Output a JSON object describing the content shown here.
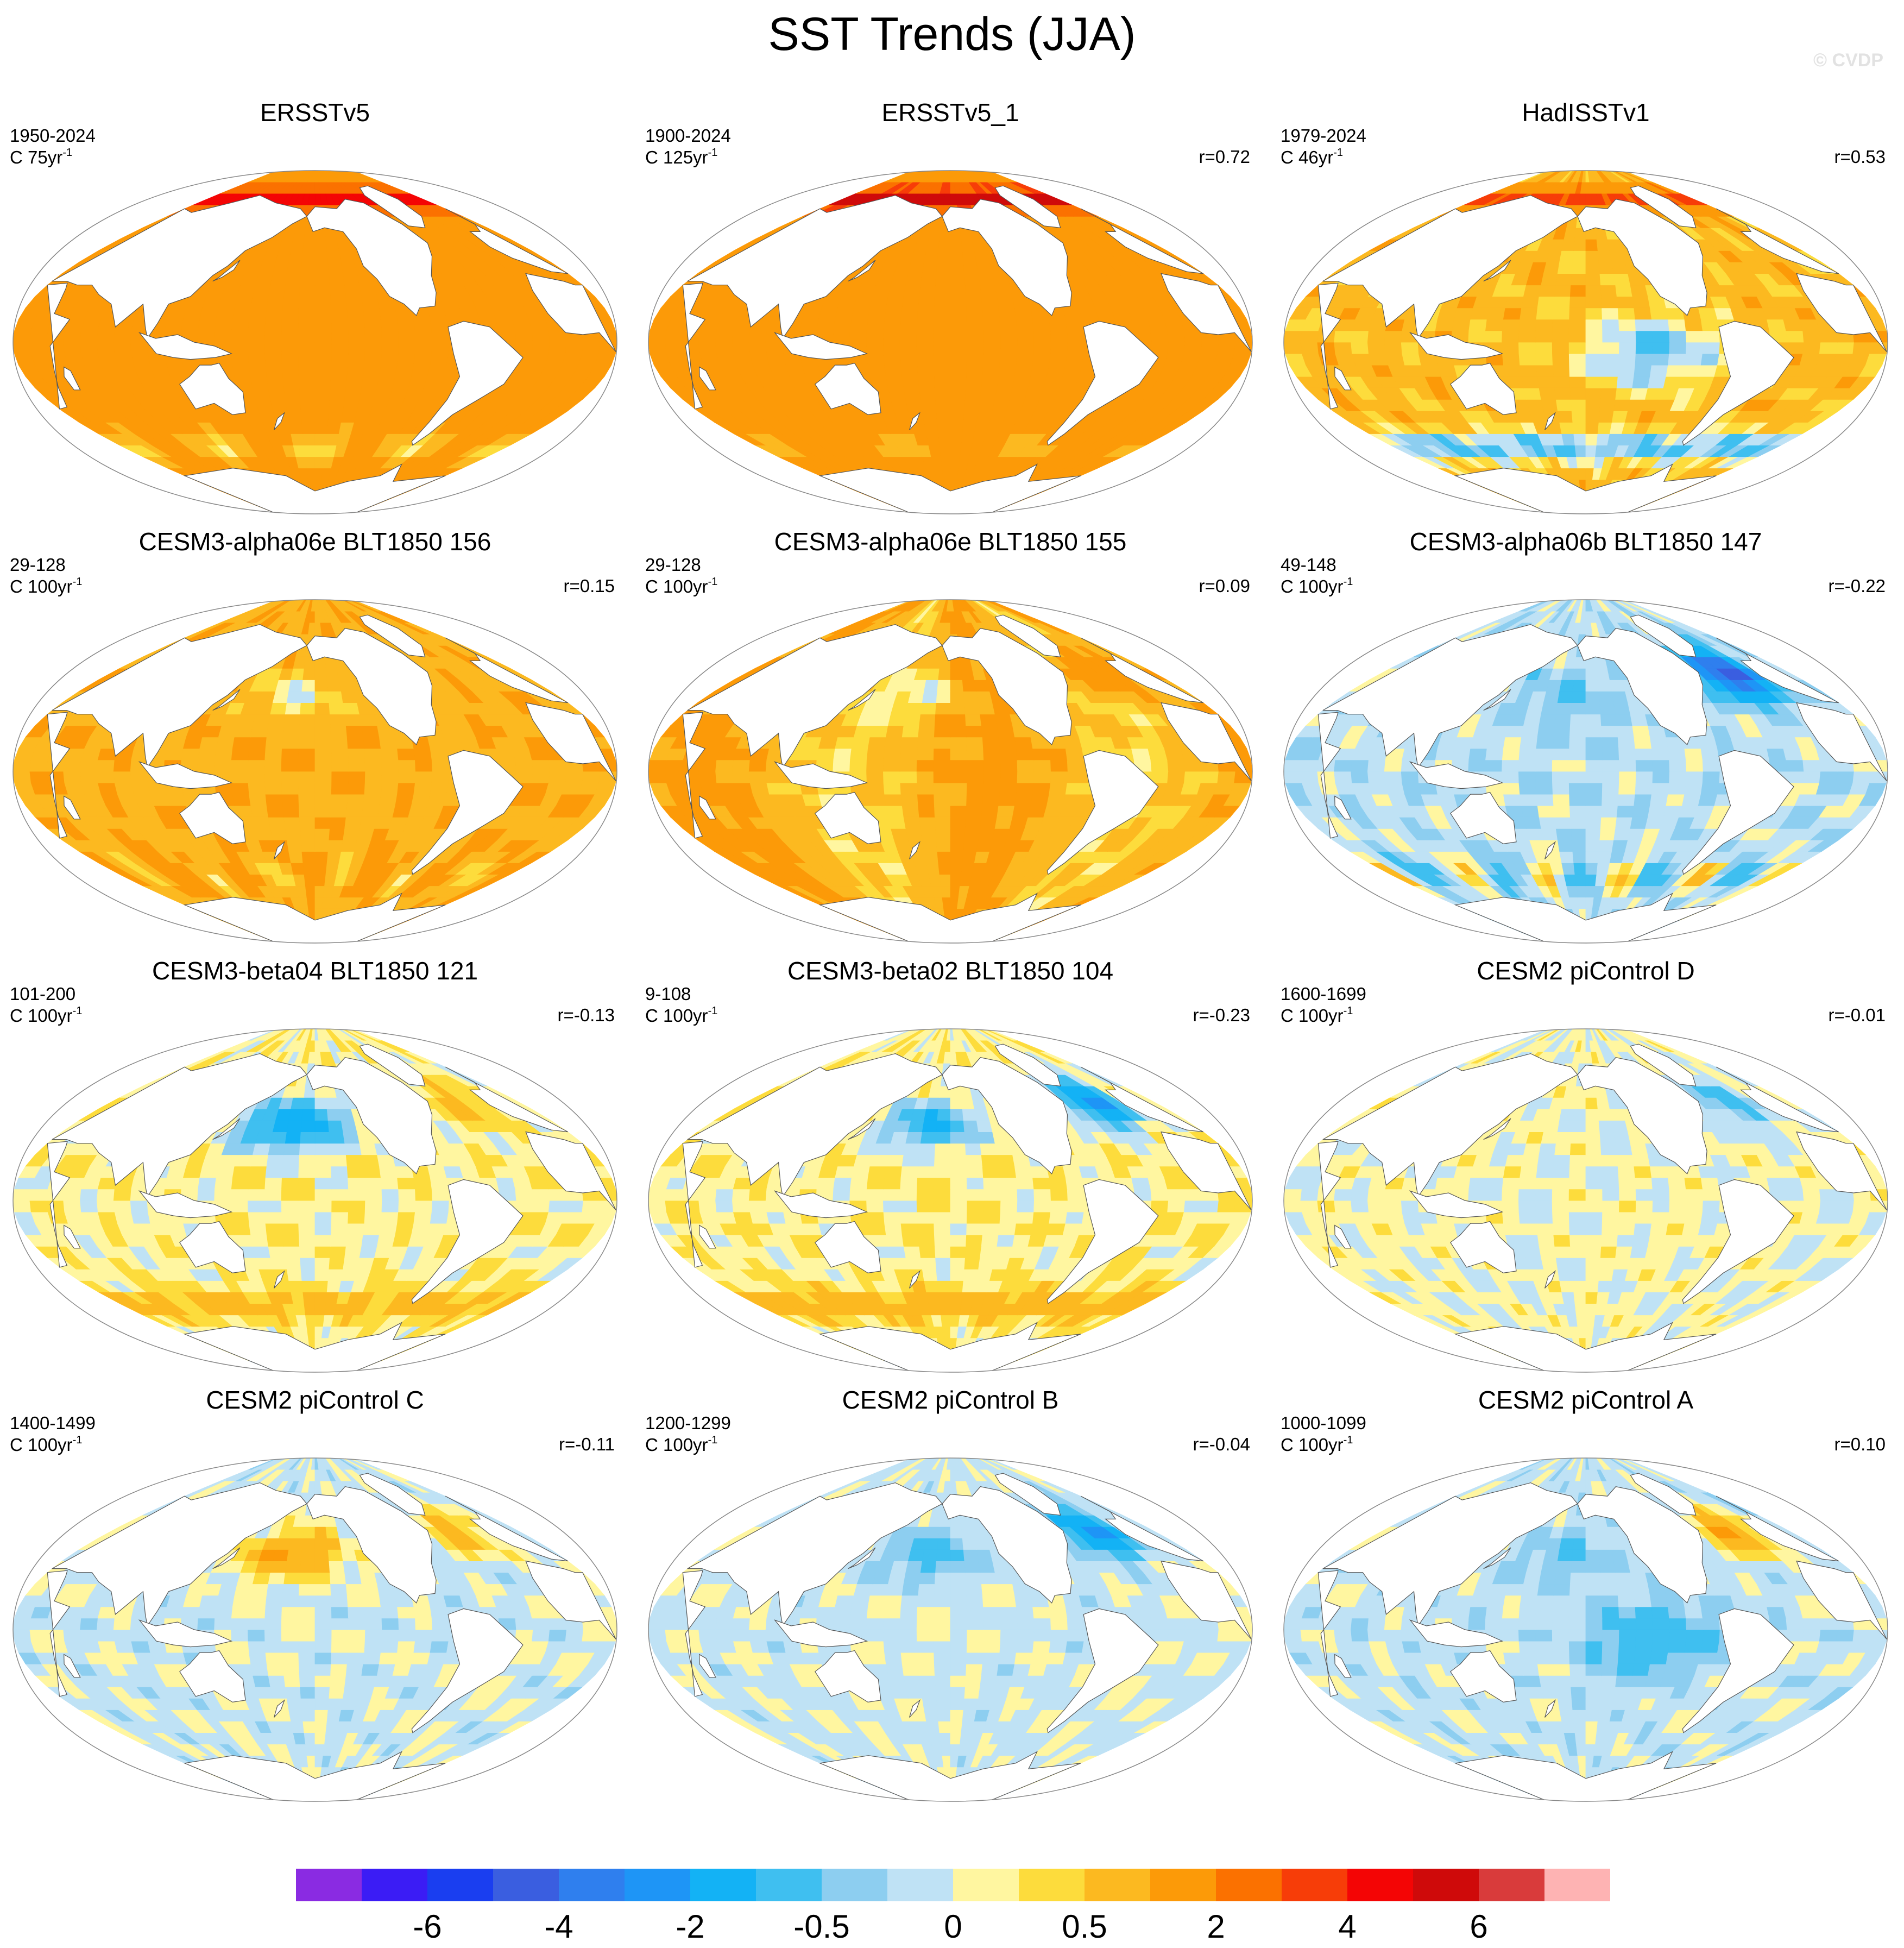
{
  "title": "SST Trends (JJA)",
  "watermark": "© CVDP",
  "panels": [
    {
      "title": "ERSSTv5",
      "period": "1950-2024",
      "units": "C 75yr",
      "units_exp": "-1",
      "corr": "",
      "pattern": "warm_obs"
    },
    {
      "title": "ERSSTv5_1",
      "period": "1900-2024",
      "units": "C 125yr",
      "units_exp": "-1",
      "corr": "r=0.72",
      "pattern": "warm_obs_uniform"
    },
    {
      "title": "HadISSTv1",
      "period": "1979-2024",
      "units": "C 46yr",
      "units_exp": "-1",
      "corr": "r=0.53",
      "pattern": "obs_east_pac_cool"
    },
    {
      "title": "CESM3-alpha06e BLT1850 156",
      "period": "29-128",
      "units": "C 100yr",
      "units_exp": "-1",
      "corr": "r=0.15",
      "pattern": "model_warm"
    },
    {
      "title": "CESM3-alpha06e BLT1850 155",
      "period": "29-128",
      "units": "C 100yr",
      "units_exp": "-1",
      "corr": "r=0.09",
      "pattern": "model_warm_npac"
    },
    {
      "title": "CESM3-alpha06b BLT1850 147",
      "period": "49-148",
      "units": "C 100yr",
      "units_exp": "-1",
      "corr": "r=-0.22",
      "pattern": "cool_natl"
    },
    {
      "title": "CESM3-beta04 BLT1850 121",
      "period": "101-200",
      "units": "C 100yr",
      "units_exp": "-1",
      "corr": "r=-0.13",
      "pattern": "cool_npac"
    },
    {
      "title": "CESM3-beta02 BLT1850 104",
      "period": "9-108",
      "units": "C 100yr",
      "units_exp": "-1",
      "corr": "r=-0.23",
      "pattern": "cool_npac_natl"
    },
    {
      "title": "CESM2 piControl D",
      "period": "1600-1699",
      "units": "C 100yr",
      "units_exp": "-1",
      "corr": "r=-0.01",
      "pattern": "neutral_mixed"
    },
    {
      "title": "CESM2 piControl C",
      "period": "1400-1499",
      "units": "C 100yr",
      "units_exp": "-1",
      "corr": "r=-0.11",
      "pattern": "mixed_npac_warm"
    },
    {
      "title": "CESM2 piControl B",
      "period": "1200-1299",
      "units": "C 100yr",
      "units_exp": "-1",
      "corr": "r=-0.04",
      "pattern": "mixed_natl_cool"
    },
    {
      "title": "CESM2 piControl A",
      "period": "1000-1099",
      "units": "C 100yr",
      "units_exp": "-1",
      "corr": "r=0.10",
      "pattern": "mixed_cool_pac"
    }
  ],
  "colorbar": {
    "colors": [
      "#8a2be2",
      "#3b1cf5",
      "#1a3ef0",
      "#3a5ee0",
      "#2f7fee",
      "#1e95f6",
      "#13b2f5",
      "#3fbff0",
      "#8dcef0",
      "#bfe2f5",
      "#fff6a0",
      "#fddc3c",
      "#fcb920",
      "#fc9a08",
      "#fb7100",
      "#f73d08",
      "#f40505",
      "#cf0a0a",
      "#d93b3b",
      "#feb3b3"
    ],
    "labels": [
      {
        "text": "-6",
        "boundary": 2
      },
      {
        "text": "-4",
        "boundary": 4
      },
      {
        "text": "-2",
        "boundary": 6
      },
      {
        "text": "-0.5",
        "boundary": 8
      },
      {
        "text": "0",
        "boundary": 10
      },
      {
        "text": "0.5",
        "boundary": 12
      },
      {
        "text": "2",
        "boundary": 14
      },
      {
        "text": "4",
        "boundary": 16
      },
      {
        "text": "6",
        "boundary": 18
      }
    ]
  }
}
